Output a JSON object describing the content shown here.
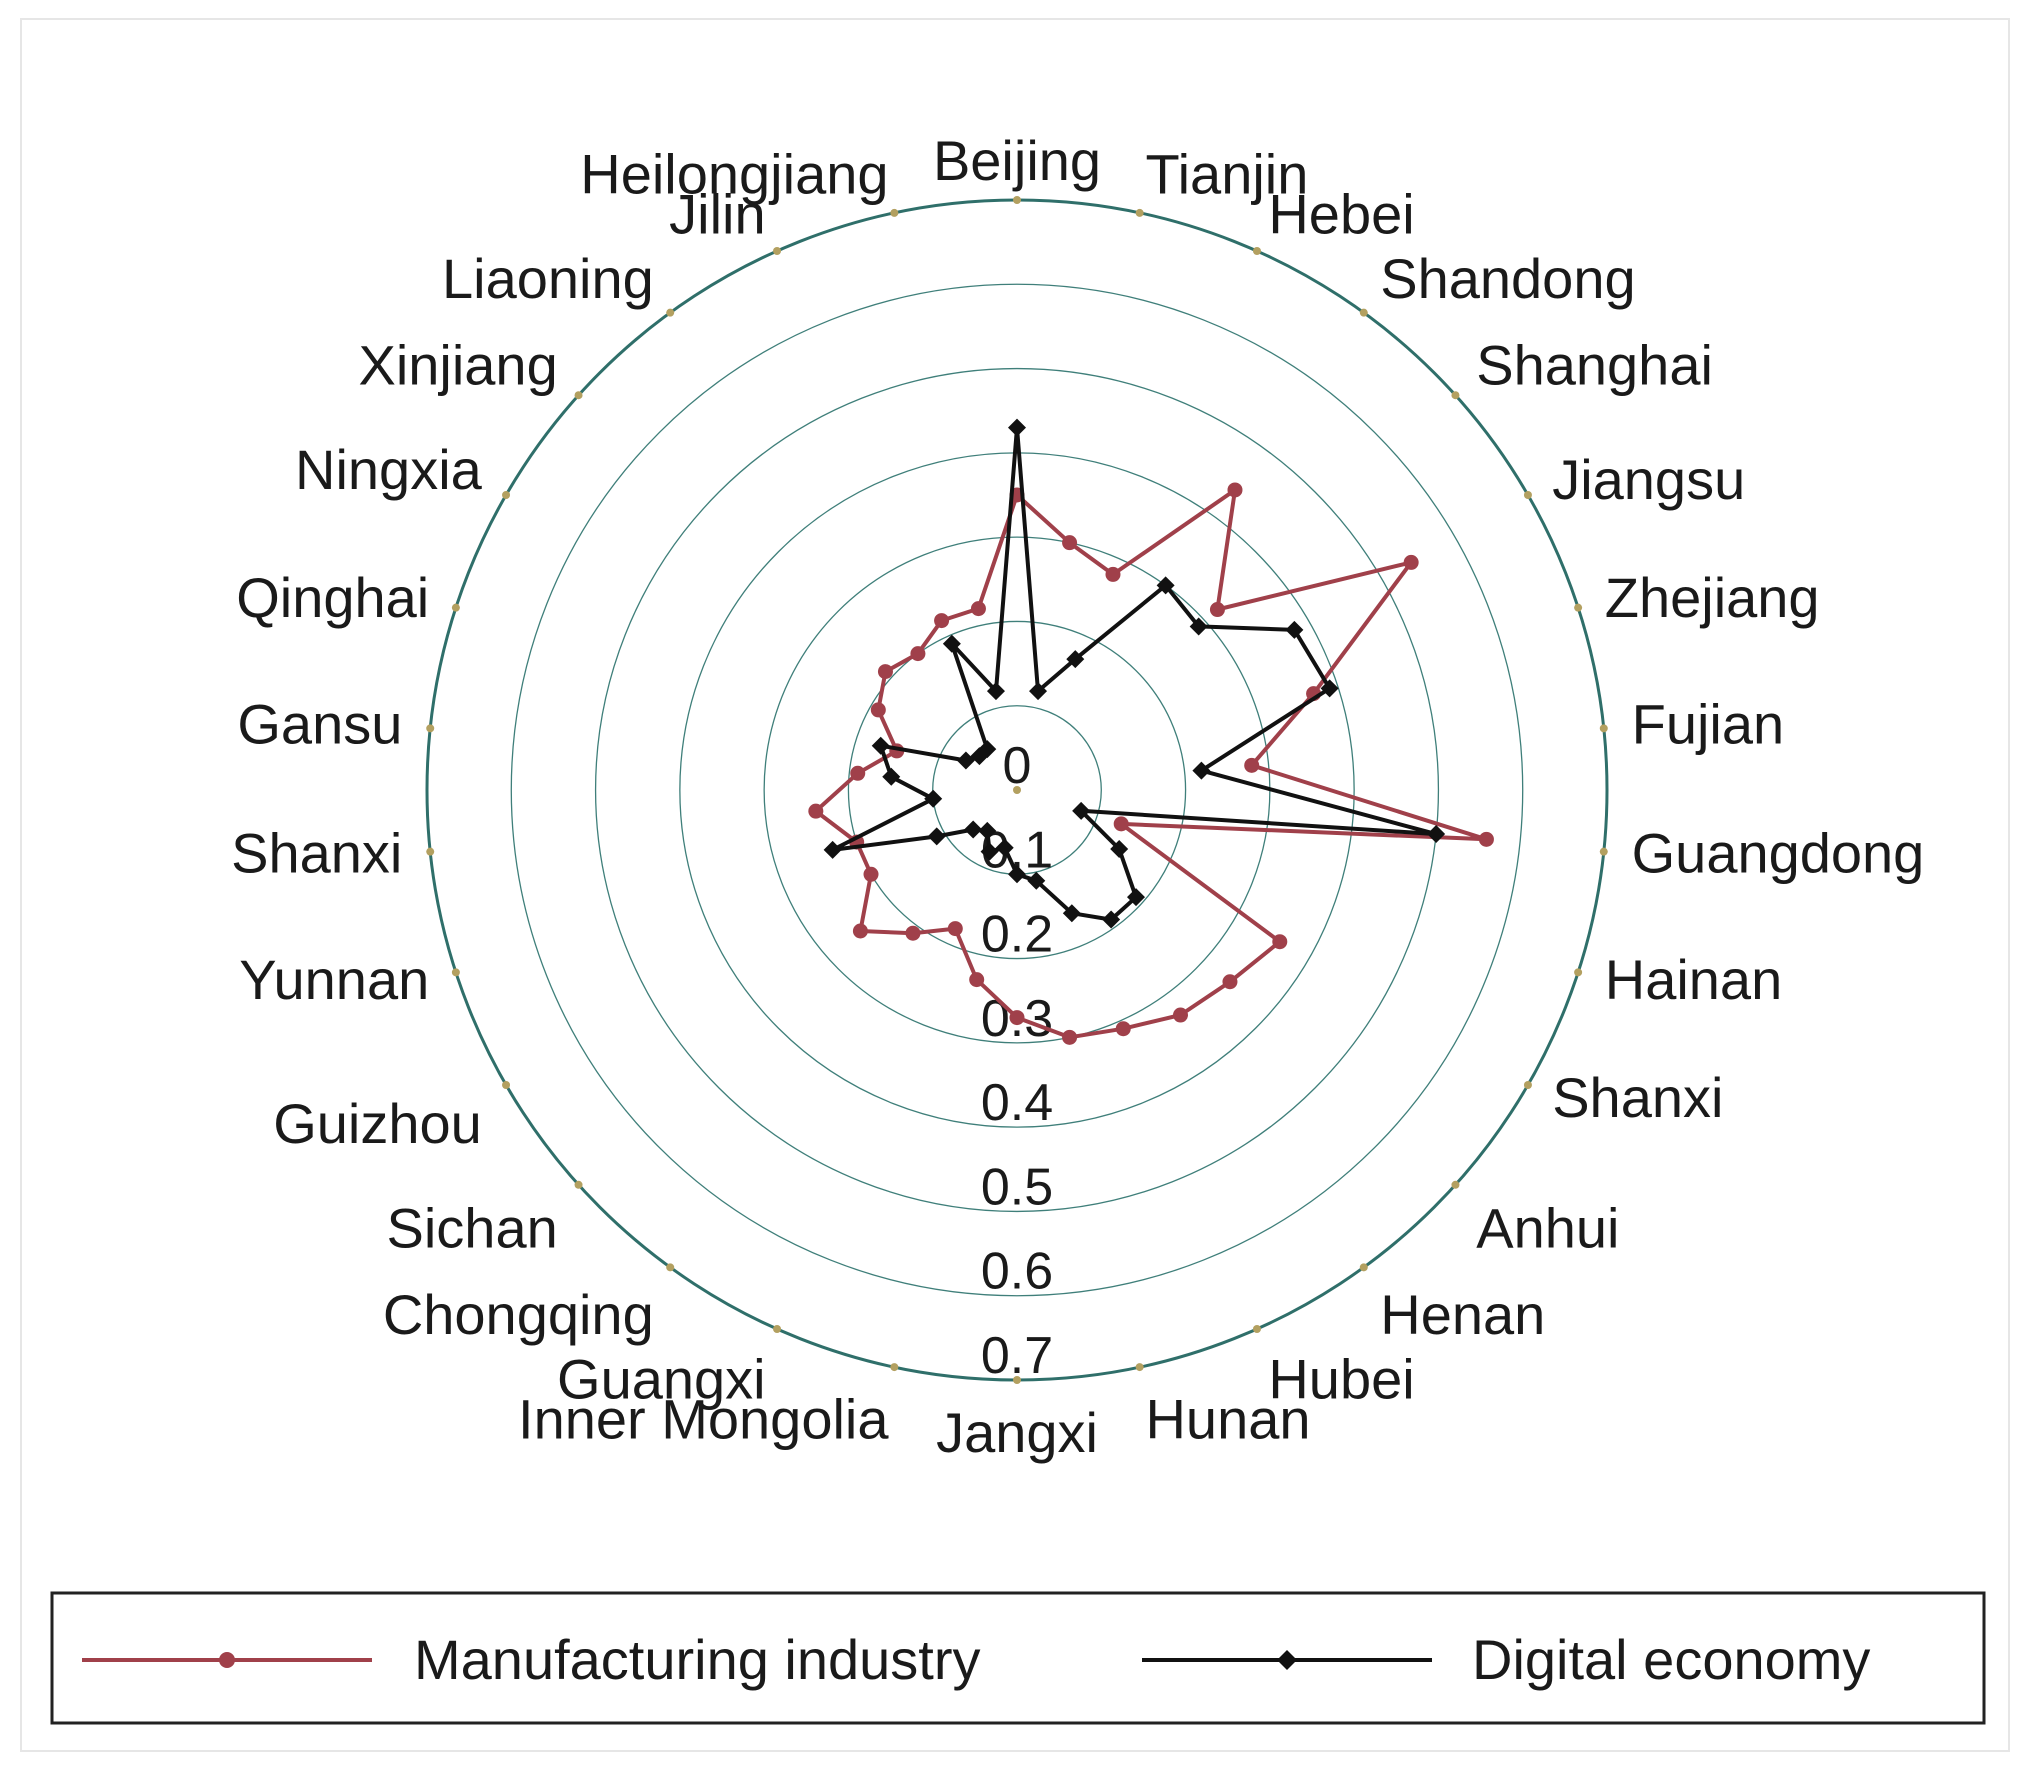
{
  "chart_data": {
    "type": "radar",
    "categories": [
      "Beijing",
      "Tianjin",
      "Hebei",
      "Shandong",
      "Shanghai",
      "Jiangsu",
      "Zhejiang",
      "Fujian",
      "Guangdong",
      "Hainan",
      "Shanxi",
      "Anhui",
      "Henan",
      "Hubei",
      "Hunan",
      "Jangxi",
      "Inner Mongolia",
      "Guangxi",
      "Chongqing",
      "Sichan",
      "Guizhou",
      "Yunnan",
      "Shanxi",
      "Gansu",
      "Qinghai",
      "Ningxia",
      "Xinjiang",
      "Liaoning",
      "Jilin",
      "Heilongjiang"
    ],
    "rlim": [
      0,
      0.7
    ],
    "r_ticks": [
      "0",
      "0.1",
      "0.2",
      "0.3",
      "0.4",
      "0.5",
      "0.6",
      "0.7"
    ],
    "series": [
      {
        "name": "Manufacturing industry",
        "color": "#a0404a",
        "marker": "circle",
        "values": [
          0.35,
          0.3,
          0.28,
          0.44,
          0.32,
          0.54,
          0.37,
          0.28,
          0.56,
          0.13,
          0.36,
          0.34,
          0.33,
          0.31,
          0.3,
          0.27,
          0.23,
          0.18,
          0.21,
          0.25,
          0.2,
          0.2,
          0.24,
          0.19,
          0.15,
          0.19,
          0.21,
          0.2,
          0.22,
          0.22
        ]
      },
      {
        "name": "Digital economy",
        "color": "#111111",
        "marker": "diamond",
        "values": [
          0.43,
          0.12,
          0.17,
          0.3,
          0.29,
          0.38,
          0.39,
          0.22,
          0.5,
          0.08,
          0.14,
          0.19,
          0.19,
          0.16,
          0.11,
          0.1,
          0.07,
          0.08,
          0.06,
          0.07,
          0.11,
          0.23,
          0.1,
          0.15,
          0.17,
          0.07,
          0.06,
          0.06,
          0.19,
          0.12
        ]
      }
    ],
    "legend": {
      "position": "bottom"
    }
  }
}
